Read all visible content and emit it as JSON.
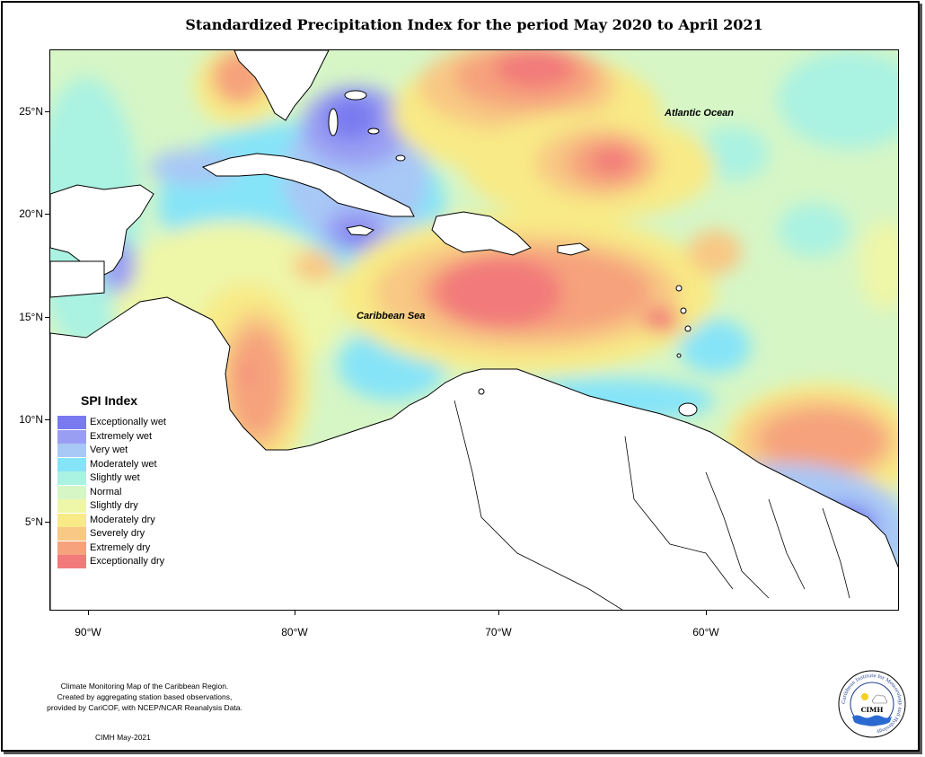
{
  "title": "Standardized Precipitation Index for the period May 2020 to April 2021",
  "map": {
    "lat_ticks": [
      "25°N",
      "20°N",
      "15°N",
      "10°N",
      "5°N"
    ],
    "lon_ticks": [
      "90°W",
      "80°W",
      "70°W",
      "60°W"
    ],
    "labels": {
      "atlantic": "Atlantic Ocean",
      "caribbean": "Caribbean Sea"
    }
  },
  "legend": {
    "title": "SPI Index",
    "items": [
      {
        "label": "Exceptionally wet",
        "color": "#7a7af0"
      },
      {
        "label": "Extremely wet",
        "color": "#9a9ef3"
      },
      {
        "label": "Very wet",
        "color": "#a8c8f6"
      },
      {
        "label": "Moderately wet",
        "color": "#86e4f8"
      },
      {
        "label": "Slightly wet",
        "color": "#aaf2e2"
      },
      {
        "label": "Normal",
        "color": "#d6f6c6"
      },
      {
        "label": "Slightly dry",
        "color": "#eef6a8"
      },
      {
        "label": "Moderately dry",
        "color": "#f8ea86"
      },
      {
        "label": "Severely dry",
        "color": "#f8c884"
      },
      {
        "label": "Extremely dry",
        "color": "#f6a27c"
      },
      {
        "label": "Exceptionally dry",
        "color": "#f27a7a"
      }
    ]
  },
  "credits": {
    "lines": [
      "Climate Monitoring Map of the Caribbean Region.",
      "Created by aggregating station based observations,",
      "provided by CariCOF, with NCEP/NCAR Reanalysis Data."
    ],
    "date": "CIMH May-2021"
  },
  "logo": {
    "ring_text": "Caribbean Institute for Meteorology and Hydrology",
    "abbr": "CIMH"
  }
}
